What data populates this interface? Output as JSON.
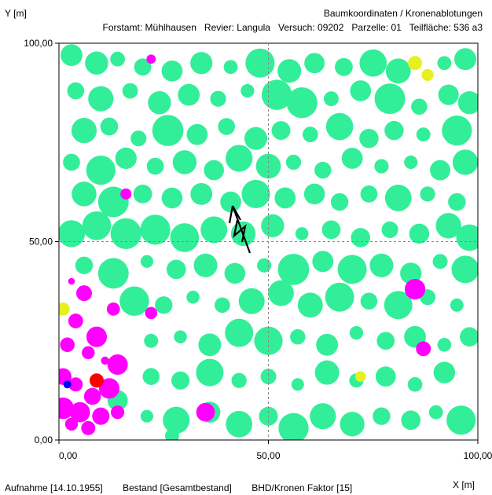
{
  "chart_data": {
    "type": "scatter",
    "title": "Baumkoordinaten / Kronenablotungen",
    "subtitle": {
      "forstamt": "Forstamt: Mühlhausen",
      "revier": "Revier: Langula",
      "versuch": "Versuch: 09202",
      "parzelle": "Parzelle: 01",
      "teilflaeche": "Teilfläche: 536 a3"
    },
    "xlabel": "X [m]",
    "ylabel": "Y [m]",
    "xlim": [
      0,
      100
    ],
    "ylim": [
      0,
      100
    ],
    "x_ticks": [
      "0,00",
      "50,00",
      "100,00"
    ],
    "y_ticks": [
      "0,00",
      "50,00",
      "100,00"
    ],
    "grid": "dashed center lines at 50",
    "north_arrow": true,
    "colors": {
      "green": "#33ee99",
      "magenta": "#ff00ff",
      "yellow": "#e6f01e",
      "red": "#ff0000",
      "blue": "#0000ff"
    },
    "series": [
      {
        "color": "green",
        "points": [
          [
            3,
            97
          ],
          [
            9,
            95
          ],
          [
            14,
            96
          ],
          [
            20,
            94
          ],
          [
            27,
            93
          ],
          [
            34,
            95
          ],
          [
            41,
            94
          ],
          [
            48,
            95
          ],
          [
            55,
            93
          ],
          [
            61,
            95
          ],
          [
            68,
            94
          ],
          [
            75,
            95
          ],
          [
            81,
            93
          ],
          [
            92,
            95
          ],
          [
            97,
            96
          ],
          [
            4,
            88
          ],
          [
            10,
            86
          ],
          [
            17,
            88
          ],
          [
            24,
            85
          ],
          [
            31,
            87
          ],
          [
            38,
            86
          ],
          [
            45,
            88
          ],
          [
            52,
            87
          ],
          [
            58,
            85
          ],
          [
            65,
            86
          ],
          [
            72,
            88
          ],
          [
            79,
            86
          ],
          [
            86,
            84
          ],
          [
            93,
            87
          ],
          [
            98,
            85
          ],
          [
            6,
            78
          ],
          [
            12,
            79
          ],
          [
            19,
            76
          ],
          [
            26,
            78
          ],
          [
            33,
            77
          ],
          [
            40,
            79
          ],
          [
            47,
            76
          ],
          [
            53,
            78
          ],
          [
            60,
            77
          ],
          [
            67,
            79
          ],
          [
            74,
            76
          ],
          [
            80,
            78
          ],
          [
            87,
            77
          ],
          [
            95,
            78
          ],
          [
            3,
            70
          ],
          [
            10,
            68
          ],
          [
            16,
            71
          ],
          [
            23,
            69
          ],
          [
            30,
            70
          ],
          [
            37,
            68
          ],
          [
            43,
            71
          ],
          [
            50,
            69
          ],
          [
            56,
            70
          ],
          [
            63,
            68
          ],
          [
            70,
            71
          ],
          [
            77,
            69
          ],
          [
            84,
            70
          ],
          [
            91,
            68
          ],
          [
            97,
            70
          ],
          [
            6,
            62
          ],
          [
            13,
            60
          ],
          [
            20,
            62
          ],
          [
            27,
            61
          ],
          [
            34,
            62
          ],
          [
            41,
            60
          ],
          [
            47,
            62
          ],
          [
            54,
            61
          ],
          [
            61,
            62
          ],
          [
            67,
            60
          ],
          [
            74,
            62
          ],
          [
            81,
            61
          ],
          [
            88,
            62
          ],
          [
            95,
            60
          ],
          [
            3,
            52
          ],
          [
            9,
            54
          ],
          [
            16,
            52
          ],
          [
            23,
            53
          ],
          [
            30,
            51
          ],
          [
            37,
            53
          ],
          [
            44,
            52
          ],
          [
            51,
            54
          ],
          [
            58,
            52
          ],
          [
            65,
            53
          ],
          [
            72,
            51
          ],
          [
            79,
            53
          ],
          [
            86,
            52
          ],
          [
            93,
            54
          ],
          [
            98,
            51
          ],
          [
            6,
            44
          ],
          [
            13,
            42
          ],
          [
            21,
            45
          ],
          [
            28,
            43
          ],
          [
            35,
            44
          ],
          [
            42,
            42
          ],
          [
            49,
            44
          ],
          [
            56,
            43
          ],
          [
            63,
            45
          ],
          [
            70,
            43
          ],
          [
            77,
            44
          ],
          [
            84,
            42
          ],
          [
            91,
            45
          ],
          [
            97,
            43
          ],
          [
            18,
            35
          ],
          [
            25,
            34
          ],
          [
            32,
            36
          ],
          [
            39,
            34
          ],
          [
            46,
            35
          ],
          [
            53,
            37
          ],
          [
            60,
            34
          ],
          [
            67,
            36
          ],
          [
            74,
            35
          ],
          [
            81,
            34
          ],
          [
            88,
            36
          ],
          [
            95,
            34
          ],
          [
            22,
            25
          ],
          [
            29,
            26
          ],
          [
            36,
            24
          ],
          [
            43,
            27
          ],
          [
            50,
            25
          ],
          [
            57,
            26
          ],
          [
            64,
            24
          ],
          [
            71,
            27
          ],
          [
            78,
            25
          ],
          [
            85,
            26
          ],
          [
            92,
            24
          ],
          [
            98,
            26
          ],
          [
            22,
            16
          ],
          [
            29,
            15
          ],
          [
            36,
            17
          ],
          [
            43,
            15
          ],
          [
            50,
            16
          ],
          [
            57,
            14
          ],
          [
            64,
            17
          ],
          [
            71,
            15
          ],
          [
            78,
            16
          ],
          [
            85,
            14
          ],
          [
            92,
            17
          ],
          [
            14,
            10
          ],
          [
            21,
            6
          ],
          [
            28,
            5
          ],
          [
            36,
            7
          ],
          [
            43,
            4
          ],
          [
            50,
            6
          ],
          [
            56,
            3
          ],
          [
            63,
            6
          ],
          [
            70,
            4
          ],
          [
            77,
            6
          ],
          [
            84,
            5
          ],
          [
            90,
            7
          ],
          [
            96,
            5
          ],
          [
            27,
            1
          ],
          [
            56,
            2
          ]
        ]
      },
      {
        "color": "magenta",
        "points": [
          [
            22,
            96
          ],
          [
            16,
            62
          ],
          [
            3,
            40
          ],
          [
            6,
            37
          ],
          [
            13,
            33
          ],
          [
            22,
            32
          ],
          [
            4,
            30
          ],
          [
            9,
            26
          ],
          [
            2,
            24
          ],
          [
            7,
            22
          ],
          [
            11,
            20
          ],
          [
            14,
            19
          ],
          [
            1,
            16
          ],
          [
            4,
            14
          ],
          [
            12,
            13
          ],
          [
            8,
            11
          ],
          [
            14,
            7
          ],
          [
            1,
            8
          ],
          [
            5,
            7
          ],
          [
            3,
            4
          ],
          [
            7,
            3
          ],
          [
            10,
            6
          ],
          [
            35,
            7
          ],
          [
            85,
            38
          ],
          [
            87,
            23
          ]
        ]
      },
      {
        "color": "yellow",
        "points": [
          [
            85,
            95
          ],
          [
            88,
            92
          ],
          [
            1,
            33
          ],
          [
            72,
            16
          ]
        ]
      },
      {
        "color": "red",
        "points": [
          [
            9,
            15
          ]
        ]
      },
      {
        "color": "blue",
        "points": [
          [
            2,
            14
          ]
        ]
      }
    ]
  },
  "footer": {
    "aufnahme": "Aufnahme [14.10.1955]",
    "bestand": "Bestand [Gesamtbestand]",
    "faktor": "BHD/Kronen Faktor [15]"
  }
}
